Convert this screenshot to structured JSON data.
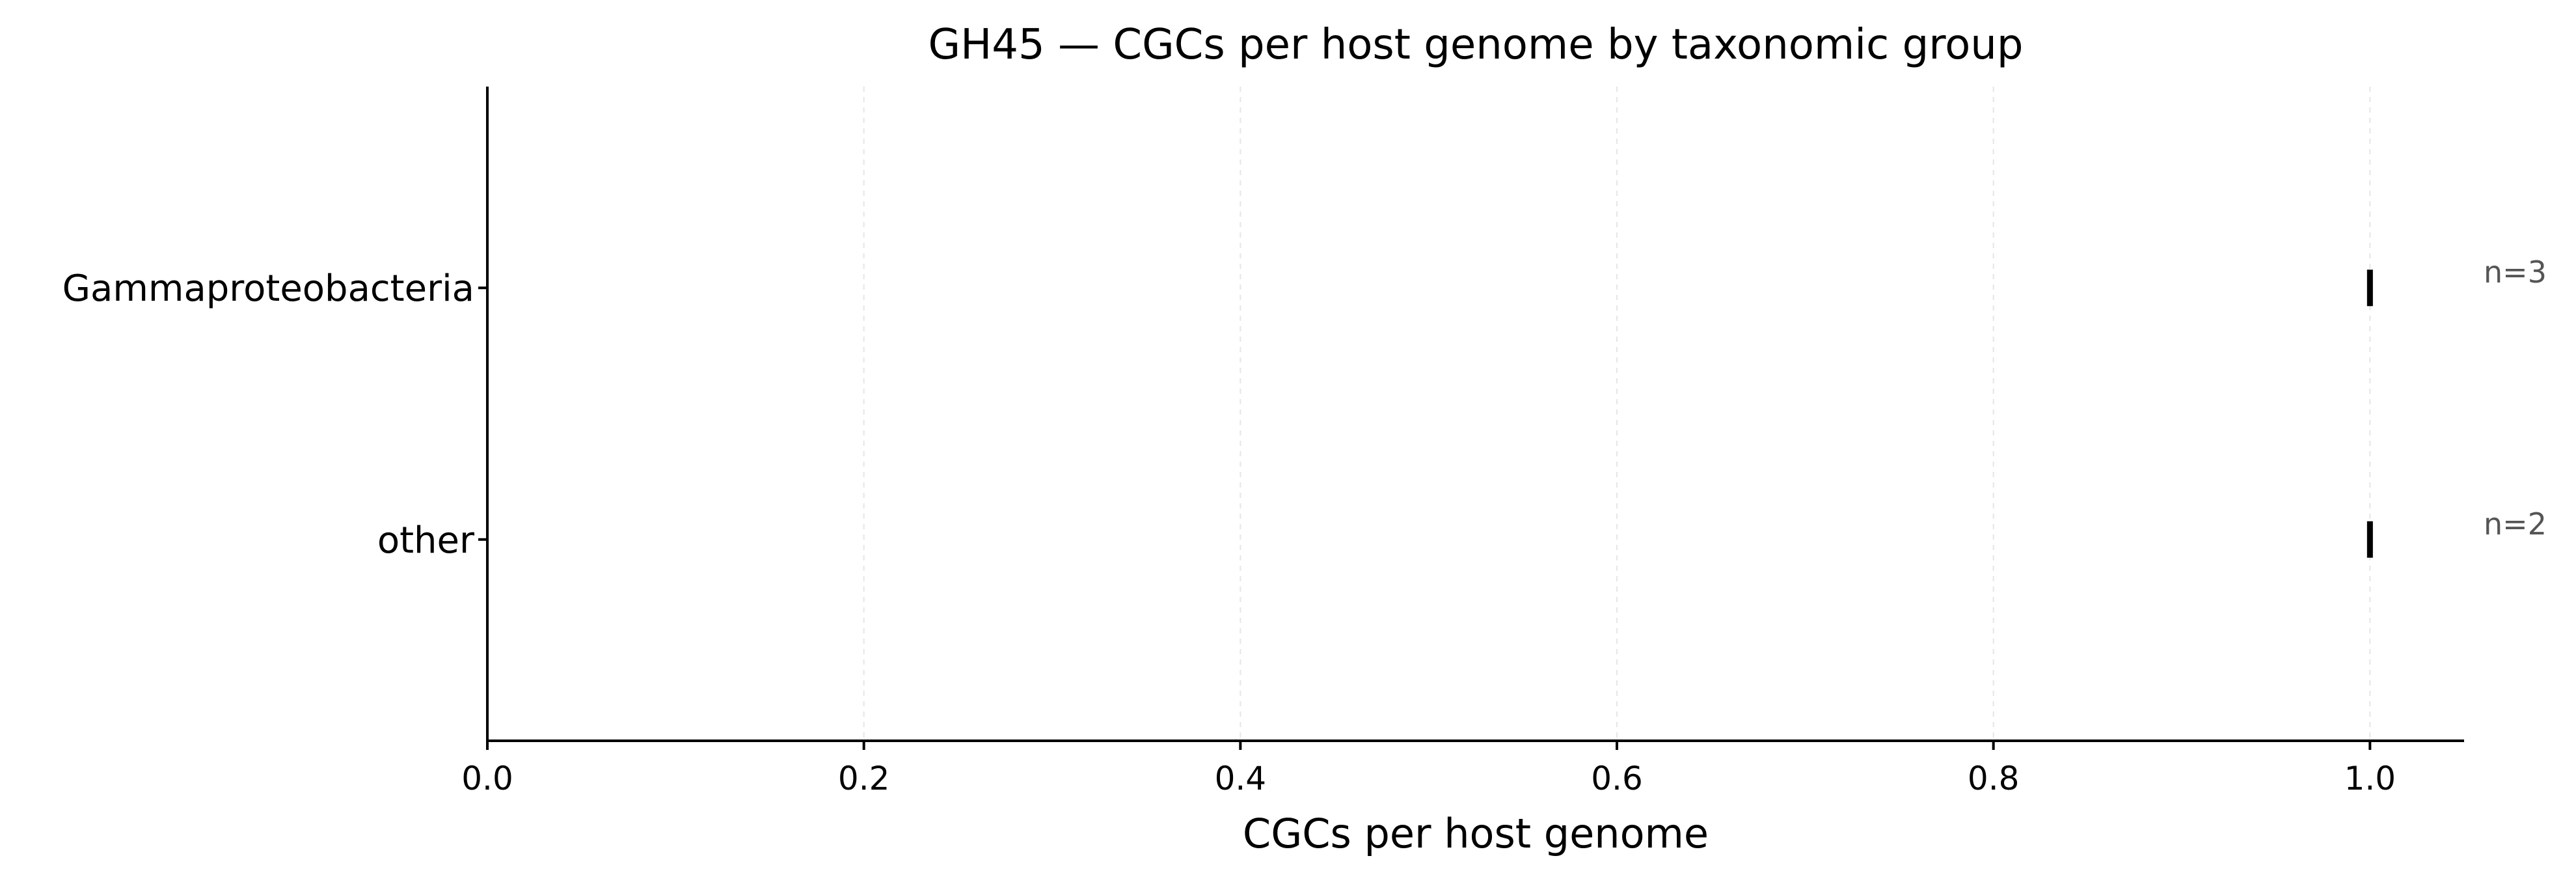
{
  "chart_data": {
    "type": "scatter",
    "title": "GH45 — CGCs per host genome by taxonomic group",
    "xlabel": "CGCs per host genome",
    "ylabel": "",
    "xlim": [
      0.0,
      1.05
    ],
    "xticks": [
      0.0,
      0.2,
      0.4,
      0.6,
      0.8,
      1.0
    ],
    "xtick_labels": [
      "0.0",
      "0.2",
      "0.4",
      "0.6",
      "0.8",
      "1.0"
    ],
    "grid": "vertical dashed",
    "categories": [
      "Gammaproteobacteria",
      "other"
    ],
    "values": [
      1.0,
      1.0
    ],
    "counts": [
      "n=3",
      "n=2"
    ]
  }
}
